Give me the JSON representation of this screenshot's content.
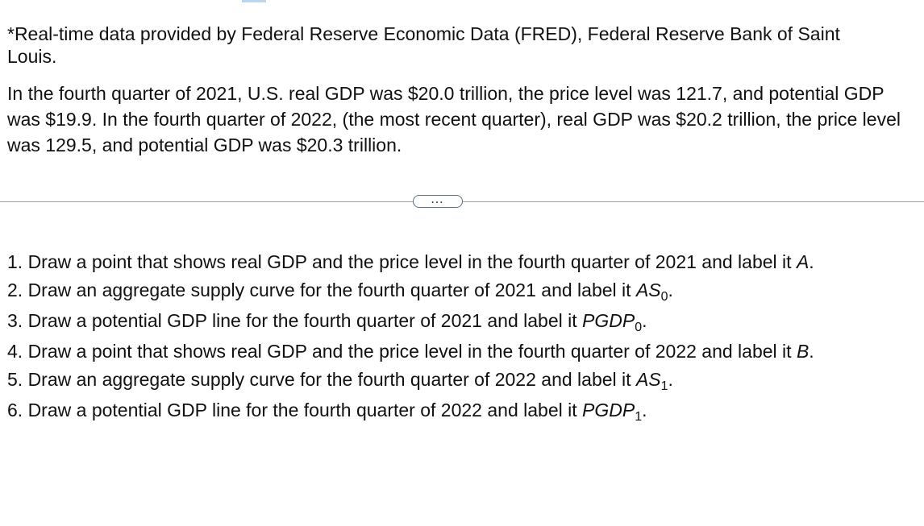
{
  "source_note": "*Real-time data provided by Federal Reserve Economic Data (FRED), Federal Reserve Bank of Saint Louis.",
  "scenario": "In the fourth quarter of 2021, U.S. real GDP was $20.0 trillion, the price level was 121.7, and potential GDP was $19.9. In the fourth quarter of 2022, (the most recent quarter), real GDP was $20.2 trillion, the price level was 129.5, and potential GDP was $20.3 trillion.",
  "more_button_label": "...",
  "instructions": [
    {
      "text": "1. Draw a point that shows real GDP and the price level in the fourth quarter of 2021 and label it ",
      "label": "A",
      "sub": "",
      "end": "."
    },
    {
      "text": "2. Draw an aggregate supply curve for the fourth quarter of 2021 and label it ",
      "label": "AS",
      "sub": "0",
      "end": "."
    },
    {
      "text": "3. Draw a potential GDP line for the fourth quarter of 2021 and label it ",
      "label": "PGDP",
      "sub": "0",
      "end": "."
    },
    {
      "text": "4. Draw a point that shows real GDP and the price level in the fourth quarter of 2022 and label it ",
      "label": "B",
      "sub": "",
      "end": "."
    },
    {
      "text": "5. Draw an aggregate supply curve for the fourth quarter of  2022 and label it ",
      "label": "AS",
      "sub": "1",
      "end": "."
    },
    {
      "text": "6. Draw a potential GDP line for the fourth quarter of 2022 and label it ",
      "label": "PGDP",
      "sub": "1",
      "end": "."
    }
  ]
}
